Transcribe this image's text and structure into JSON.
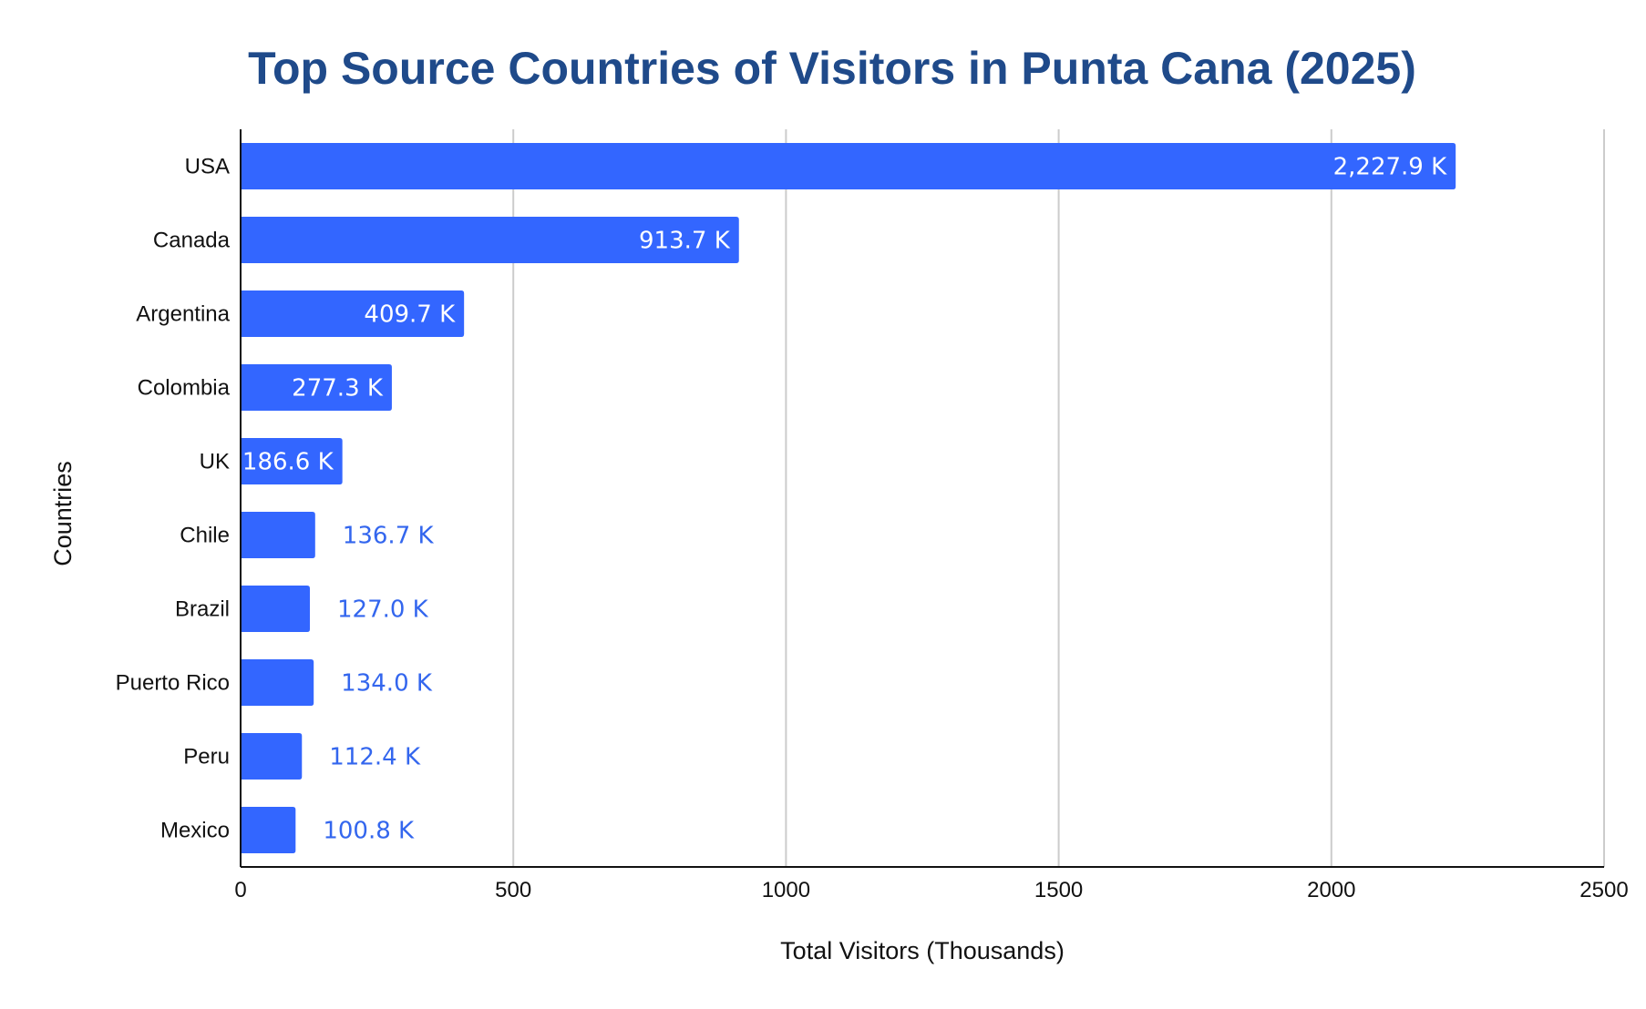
{
  "chart_data": {
    "type": "bar",
    "orientation": "horizontal",
    "title": "Top Source Countries of Visitors in Punta Cana (2025)",
    "xlabel": "Total Visitors (Thousands)",
    "ylabel": "Countries",
    "xlim": [
      0,
      2500
    ],
    "xticks": [
      0,
      500,
      1000,
      1500,
      2000,
      2500
    ],
    "grid": true,
    "bar_color": "#3366ff",
    "label_inside_color": "#ffffff",
    "label_outside_color": "#3366ee",
    "title_color": "#1f4a8a",
    "categories": [
      "USA",
      "Canada",
      "Argentina",
      "Colombia",
      "UK",
      "Chile",
      "Brazil",
      "Puerto Rico",
      "Peru",
      "Mexico"
    ],
    "values": [
      2227.9,
      913.7,
      409.7,
      277.3,
      186.6,
      136.7,
      127.0,
      134.0,
      112.4,
      100.8
    ],
    "data_labels": [
      "2,227.9 K",
      "913.7 K",
      "409.7 K",
      "277.3 K",
      "186.6 K",
      "136.7 K",
      "127.0 K",
      "134.0 K",
      "112.4 K",
      "100.8 K"
    ]
  }
}
